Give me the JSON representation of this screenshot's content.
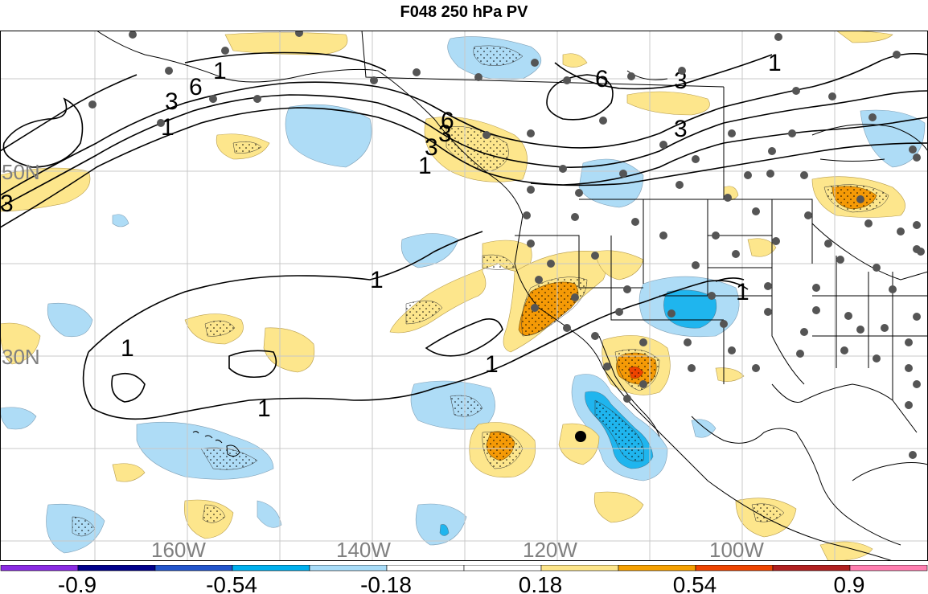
{
  "title": "F048 250 hPa PV",
  "lon_labels": [
    "160W",
    "140W",
    "120W",
    "100W"
  ],
  "lat_labels": [
    "50N",
    "30N"
  ],
  "contour_labels": [
    "6",
    "3",
    "1",
    "6",
    "3",
    "3",
    "1",
    "1",
    "1",
    "1",
    "1",
    "1",
    "3",
    "3",
    "6",
    "3",
    "1",
    "1"
  ],
  "colorbar": {
    "colors": [
      "#8a2be2",
      "#00008b",
      "#2255cc",
      "#00b0ee",
      "#a8dcf8",
      "#ffffff",
      "#ffffff",
      "#fde58a",
      "#f5a000",
      "#ee4400",
      "#b02020",
      "#ff7fb0"
    ],
    "tick_labels": [
      "-0.9",
      "-0.54",
      "-0.18",
      "0.18",
      "0.54",
      "0.9"
    ]
  },
  "colors": {
    "light_blue": "#aedcf6",
    "mid_blue": "#1fb5ee",
    "light_yellow": "#fde68c",
    "orange": "#f59a06",
    "red_orange": "#ee4400",
    "station_dot": "#555555",
    "contour": "#000000"
  }
}
